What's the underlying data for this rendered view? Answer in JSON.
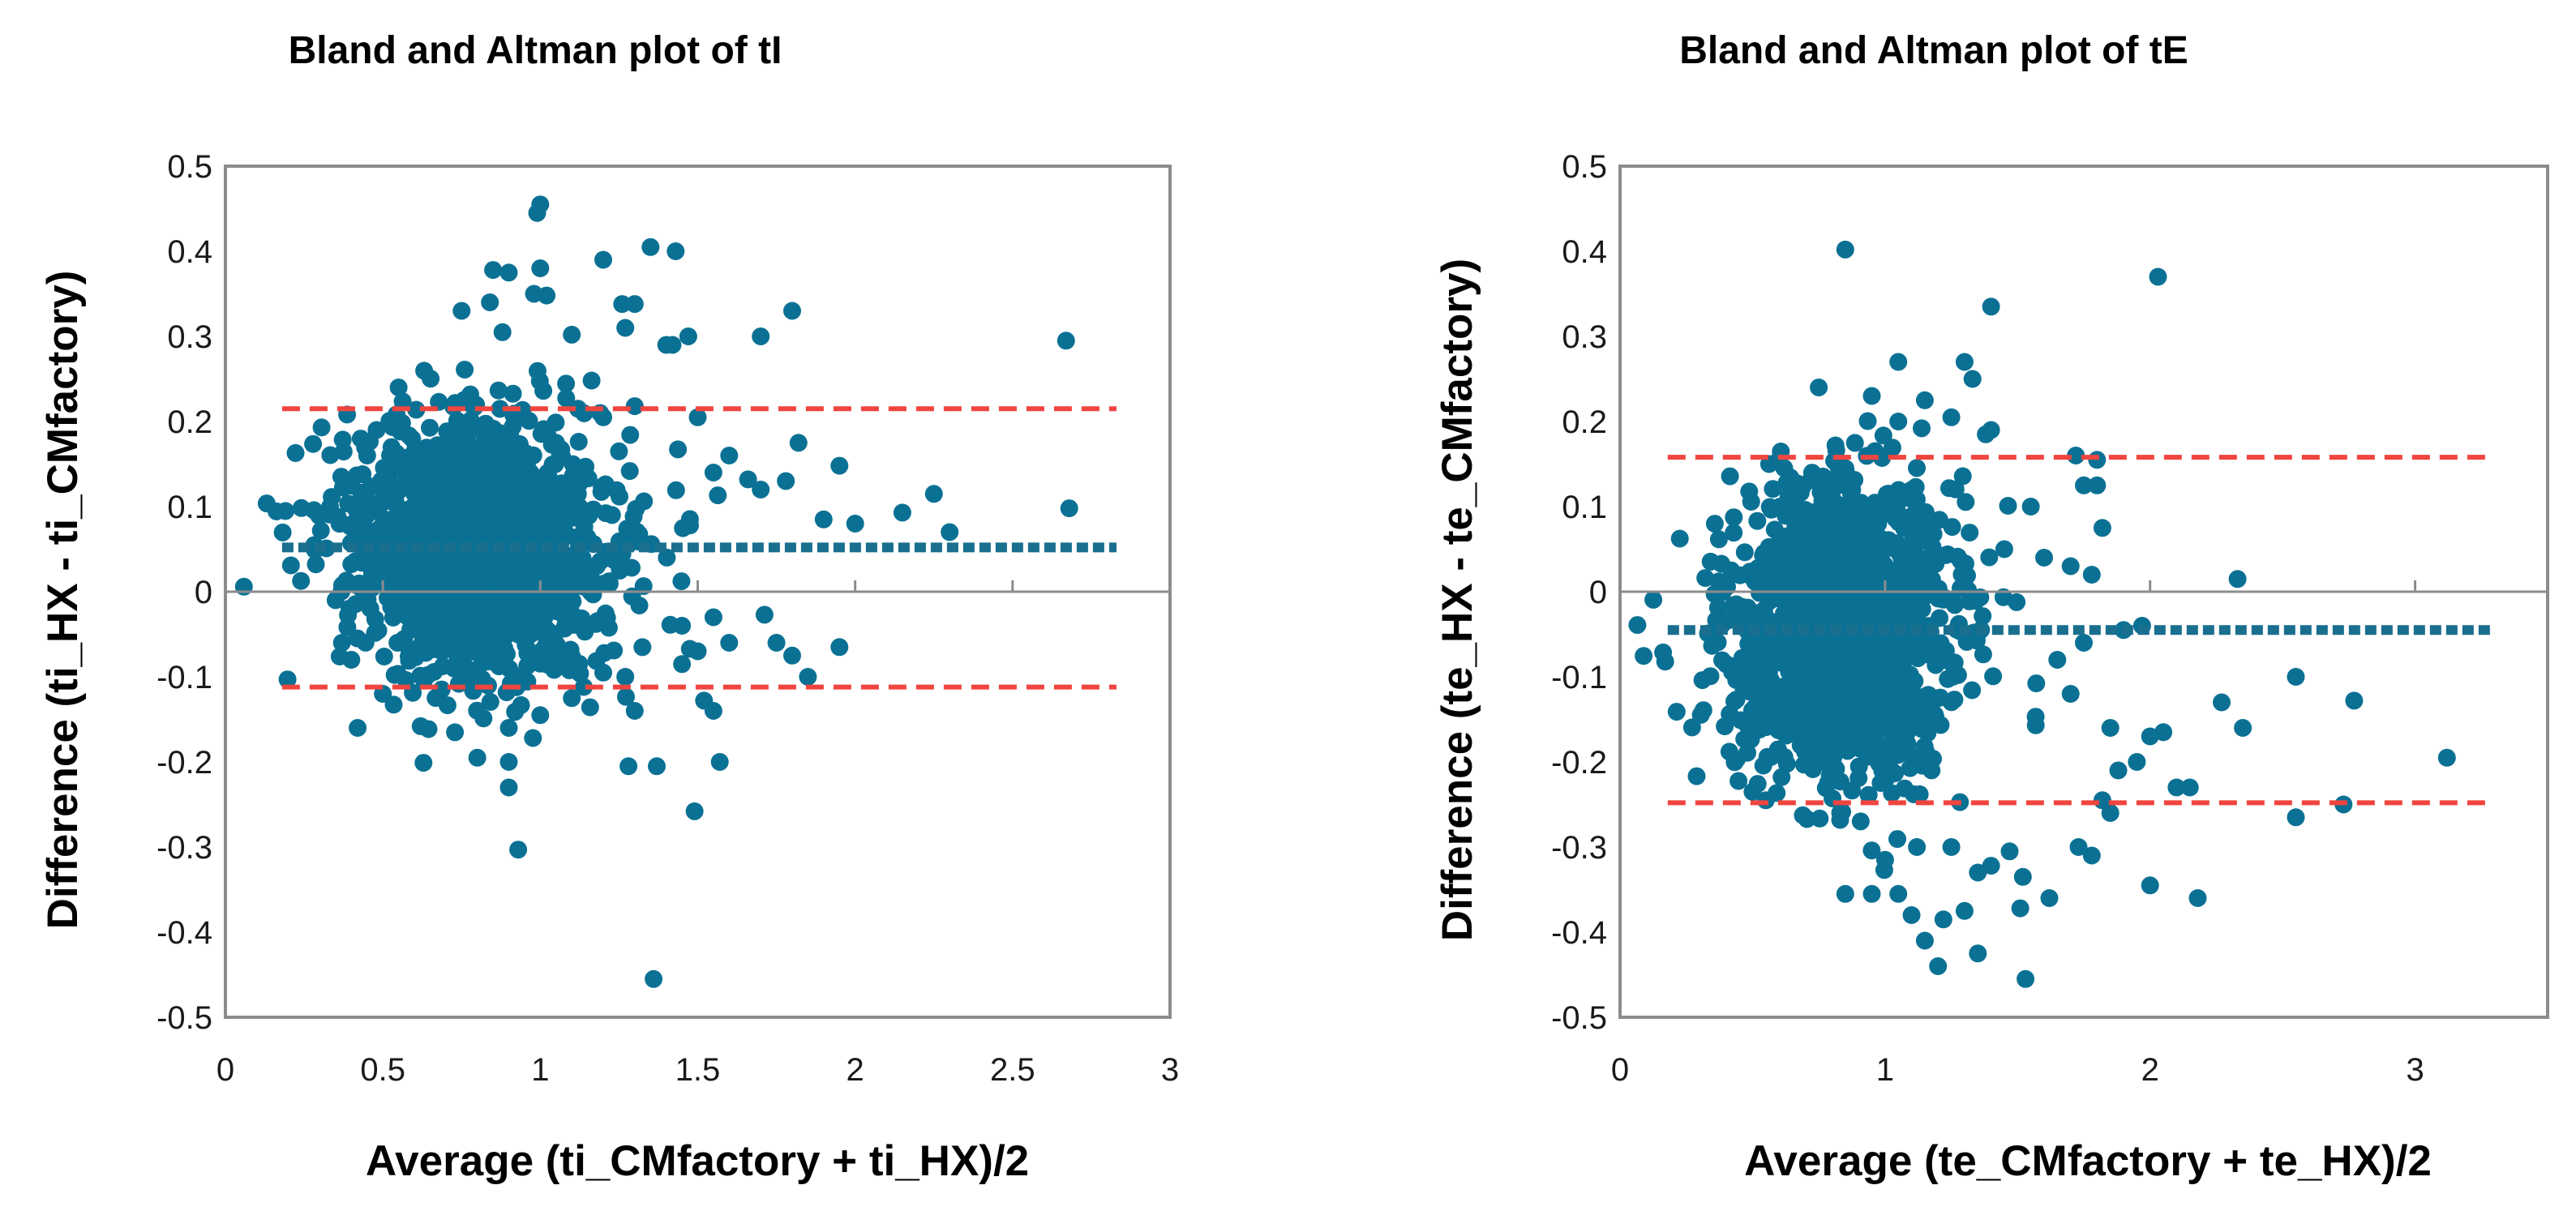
{
  "colors": {
    "points": "#0b7194",
    "mean_line": "#1a6f8f",
    "loa_line": "#f0453f",
    "frame": "#8c8c8c",
    "zero_axis": "#8c8c8c",
    "background": "#ffffff"
  },
  "chart_data": [
    {
      "type": "scatter",
      "title": "Bland and Altman plot of tI",
      "xlabel": "Average (ti_CMfactory + ti_HX)/2",
      "ylabel": "Difference (ti_HX - ti_CMfactory)",
      "xlim": [
        0,
        3
      ],
      "ylim": [
        -0.5,
        0.5
      ],
      "x_ticks": [
        0,
        0.5,
        1,
        1.5,
        2,
        2.5,
        3
      ],
      "x_tick_labels": [
        "0",
        "0.5",
        "1",
        "1.5",
        "2",
        "2.5",
        "3"
      ],
      "y_ticks": [
        0.5,
        0.4,
        0.3,
        0.2,
        0.1,
        0,
        -0.1,
        -0.2,
        -0.3,
        -0.4,
        -0.5
      ],
      "y_tick_labels": [
        "0.5",
        "0.4",
        "0.3",
        "0.2",
        "0.1",
        "0",
        "-0.1",
        "-0.2",
        "-0.3",
        "-0.4",
        "-0.5"
      ],
      "grid": false,
      "mean_difference": 0.052,
      "mean_line_x": [
        0.18,
        2.83
      ],
      "loa_upper": 0.215,
      "loa_lower": -0.112,
      "loa_x": [
        0.18,
        2.83
      ],
      "cluster": {
        "x_center": 0.8,
        "y_center": 0.052,
        "x_spread": 0.2,
        "y_spread": 0.075
      },
      "points": [
        [
          1.0,
          0.455
        ],
        [
          0.99,
          0.445
        ],
        [
          1.35,
          0.405
        ],
        [
          1.43,
          0.4
        ],
        [
          1.2,
          0.39
        ],
        [
          0.9,
          0.375
        ],
        [
          0.85,
          0.378
        ],
        [
          1.0,
          0.38
        ],
        [
          0.98,
          0.35
        ],
        [
          1.02,
          0.348
        ],
        [
          1.26,
          0.338
        ],
        [
          1.3,
          0.338
        ],
        [
          1.8,
          0.33
        ],
        [
          0.75,
          0.33
        ],
        [
          0.84,
          0.34
        ],
        [
          1.27,
          0.31
        ],
        [
          1.1,
          0.302
        ],
        [
          1.42,
          0.29
        ],
        [
          1.47,
          0.3
        ],
        [
          1.4,
          0.29
        ],
        [
          1.7,
          0.3
        ],
        [
          0.88,
          0.305
        ],
        [
          2.67,
          0.295
        ],
        [
          1.3,
          0.218
        ],
        [
          1.12,
          0.215
        ],
        [
          1.5,
          0.205
        ],
        [
          1.2,
          0.205
        ],
        [
          1.05,
          0.175
        ],
        [
          1.82,
          0.175
        ],
        [
          1.25,
          0.165
        ],
        [
          1.6,
          0.16
        ],
        [
          1.55,
          0.14
        ],
        [
          1.95,
          0.148
        ],
        [
          1.66,
          0.132
        ],
        [
          1.7,
          0.12
        ],
        [
          1.78,
          0.13
        ],
        [
          2.25,
          0.115
        ],
        [
          2.15,
          0.093
        ],
        [
          1.9,
          0.085
        ],
        [
          2.0,
          0.08
        ],
        [
          2.68,
          0.098
        ],
        [
          2.3,
          0.07
        ],
        [
          1.45,
          -0.04
        ],
        [
          1.55,
          -0.03
        ],
        [
          1.6,
          -0.06
        ],
        [
          1.5,
          -0.07
        ],
        [
          1.75,
          -0.06
        ],
        [
          1.8,
          -0.075
        ],
        [
          1.95,
          -0.065
        ],
        [
          1.85,
          -0.1
        ],
        [
          1.45,
          -0.085
        ],
        [
          1.2,
          -0.095
        ],
        [
          1.27,
          -0.1
        ],
        [
          0.42,
          -0.16
        ],
        [
          0.62,
          -0.158
        ],
        [
          0.9,
          -0.16
        ],
        [
          1.3,
          -0.14
        ],
        [
          1.55,
          -0.14
        ],
        [
          1.52,
          -0.128
        ],
        [
          1.0,
          -0.145
        ],
        [
          0.8,
          -0.195
        ],
        [
          0.9,
          -0.2
        ],
        [
          1.28,
          -0.205
        ],
        [
          1.37,
          -0.205
        ],
        [
          1.57,
          -0.2
        ],
        [
          0.9,
          -0.23
        ],
        [
          1.49,
          -0.258
        ],
        [
          0.93,
          -0.303
        ],
        [
          1.36,
          -0.455
        ],
        [
          0.5,
          -0.12
        ],
        [
          1.1,
          -0.125
        ],
        [
          0.35,
          -0.01
        ],
        [
          0.37,
          -0.06
        ],
        [
          0.4,
          -0.08
        ],
        [
          0.45,
          0.16
        ],
        [
          0.48,
          0.19
        ],
        [
          0.55,
          0.24
        ]
      ]
    },
    {
      "type": "scatter",
      "title": "Bland and Altman plot of tE",
      "xlabel": "Average (te_CMfactory + te_HX)/2",
      "ylabel": "Difference (te_HX - te_CMfactory)",
      "xlim": [
        0,
        3.5
      ],
      "ylim": [
        -0.5,
        0.5
      ],
      "x_ticks": [
        0,
        1,
        2,
        3
      ],
      "x_tick_labels": [
        "0",
        "1",
        "2",
        "3"
      ],
      "y_ticks": [
        0.5,
        0.4,
        0.3,
        0.2,
        0.1,
        0,
        -0.1,
        -0.2,
        -0.3,
        -0.4,
        -0.5
      ],
      "y_tick_labels": [
        "0.5",
        "0.4",
        "0.3",
        "0.2",
        "0.1",
        "0",
        "-0.1",
        "-0.2",
        "-0.3",
        "-0.4",
        "-0.5"
      ],
      "grid": false,
      "mean_difference": -0.045,
      "mean_line_x": [
        0.18,
        3.3
      ],
      "loa_upper": 0.158,
      "loa_lower": -0.248,
      "loa_x": [
        0.18,
        3.3
      ],
      "cluster": {
        "x_center": 0.85,
        "y_center": -0.04,
        "x_spread": 0.2,
        "y_spread": 0.085
      },
      "points": [
        [
          0.85,
          0.402
        ],
        [
          2.03,
          0.37
        ],
        [
          1.4,
          0.335
        ],
        [
          1.05,
          0.27
        ],
        [
          1.3,
          0.27
        ],
        [
          1.33,
          0.25
        ],
        [
          0.75,
          0.24
        ],
        [
          1.15,
          0.225
        ],
        [
          0.95,
          0.23
        ],
        [
          1.05,
          0.2
        ],
        [
          1.25,
          0.205
        ],
        [
          1.38,
          0.185
        ],
        [
          1.4,
          0.19
        ],
        [
          1.72,
          0.16
        ],
        [
          1.8,
          0.155
        ],
        [
          1.75,
          0.125
        ],
        [
          1.8,
          0.125
        ],
        [
          1.82,
          0.075
        ],
        [
          1.55,
          0.1
        ],
        [
          1.45,
          0.05
        ],
        [
          1.6,
          0.04
        ],
        [
          1.7,
          0.03
        ],
        [
          2.33,
          0.015
        ],
        [
          1.78,
          0.02
        ],
        [
          1.9,
          -0.045
        ],
        [
          1.97,
          -0.04
        ],
        [
          1.75,
          -0.06
        ],
        [
          1.65,
          -0.08
        ],
        [
          1.7,
          -0.12
        ],
        [
          1.85,
          -0.16
        ],
        [
          1.88,
          -0.21
        ],
        [
          1.95,
          -0.2
        ],
        [
          2.0,
          -0.17
        ],
        [
          2.05,
          -0.165
        ],
        [
          2.27,
          -0.13
        ],
        [
          2.35,
          -0.16
        ],
        [
          2.55,
          -0.1
        ],
        [
          2.77,
          -0.128
        ],
        [
          3.12,
          -0.195
        ],
        [
          2.1,
          -0.23
        ],
        [
          2.15,
          -0.23
        ],
        [
          1.82,
          -0.245
        ],
        [
          1.85,
          -0.26
        ],
        [
          2.55,
          -0.265
        ],
        [
          2.73,
          -0.25
        ],
        [
          2.18,
          -0.36
        ],
        [
          2.0,
          -0.345
        ],
        [
          1.73,
          -0.3
        ],
        [
          1.78,
          -0.31
        ],
        [
          1.62,
          -0.36
        ],
        [
          1.52,
          -0.335
        ],
        [
          1.47,
          -0.305
        ],
        [
          1.51,
          -0.372
        ],
        [
          1.53,
          -0.455
        ],
        [
          1.4,
          -0.322
        ],
        [
          1.35,
          -0.33
        ],
        [
          1.35,
          -0.425
        ],
        [
          1.2,
          -0.44
        ],
        [
          1.15,
          -0.41
        ],
        [
          1.22,
          -0.385
        ],
        [
          1.1,
          -0.38
        ],
        [
          1.05,
          -0.355
        ],
        [
          0.85,
          -0.355
        ],
        [
          0.95,
          -0.355
        ],
        [
          1.3,
          -0.375
        ],
        [
          1.25,
          -0.3
        ],
        [
          1.12,
          -0.3
        ],
        [
          1.0,
          -0.315
        ],
        [
          0.5,
          -0.235
        ],
        [
          0.55,
          -0.245
        ],
        [
          0.4,
          -0.085
        ],
        [
          0.45,
          -0.1
        ],
        [
          0.42,
          0.025
        ],
        [
          0.6,
          0.155
        ]
      ]
    }
  ]
}
